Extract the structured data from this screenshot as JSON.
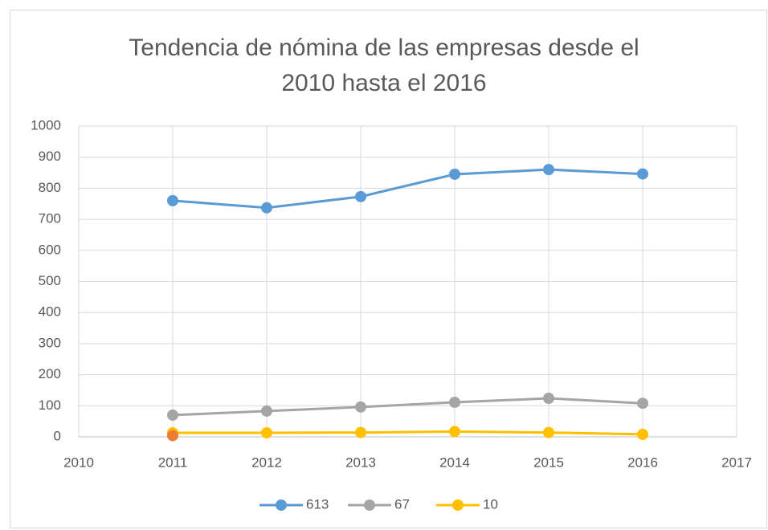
{
  "chart_data": {
    "type": "line",
    "title": "Tendencia de nómina de las empresas desde el 2010 hasta el 2016",
    "x": [
      2011,
      2012,
      2013,
      2014,
      2015,
      2016
    ],
    "series": [
      {
        "name": "613",
        "color": "#5b9bd5",
        "values": [
          760,
          737,
          773,
          845,
          860,
          846
        ]
      },
      {
        "name": "67",
        "color": "#a5a5a5",
        "values": [
          70,
          83,
          96,
          111,
          124,
          108
        ]
      },
      {
        "name": "10",
        "color": "#ffc000",
        "values": [
          13,
          13,
          14,
          17,
          14,
          8
        ]
      },
      {
        "color": "#ed7d31",
        "values": [
          4,
          null,
          null,
          null,
          null,
          null
        ]
      }
    ],
    "xlim": [
      2010,
      2017
    ],
    "xticks": [
      2010,
      2011,
      2012,
      2013,
      2014,
      2015,
      2016,
      2017
    ],
    "ylim": [
      0,
      1000
    ],
    "yticks": [
      0,
      100,
      200,
      300,
      400,
      500,
      600,
      700,
      800,
      900,
      1000
    ],
    "grid": true,
    "legend": "bottom"
  }
}
